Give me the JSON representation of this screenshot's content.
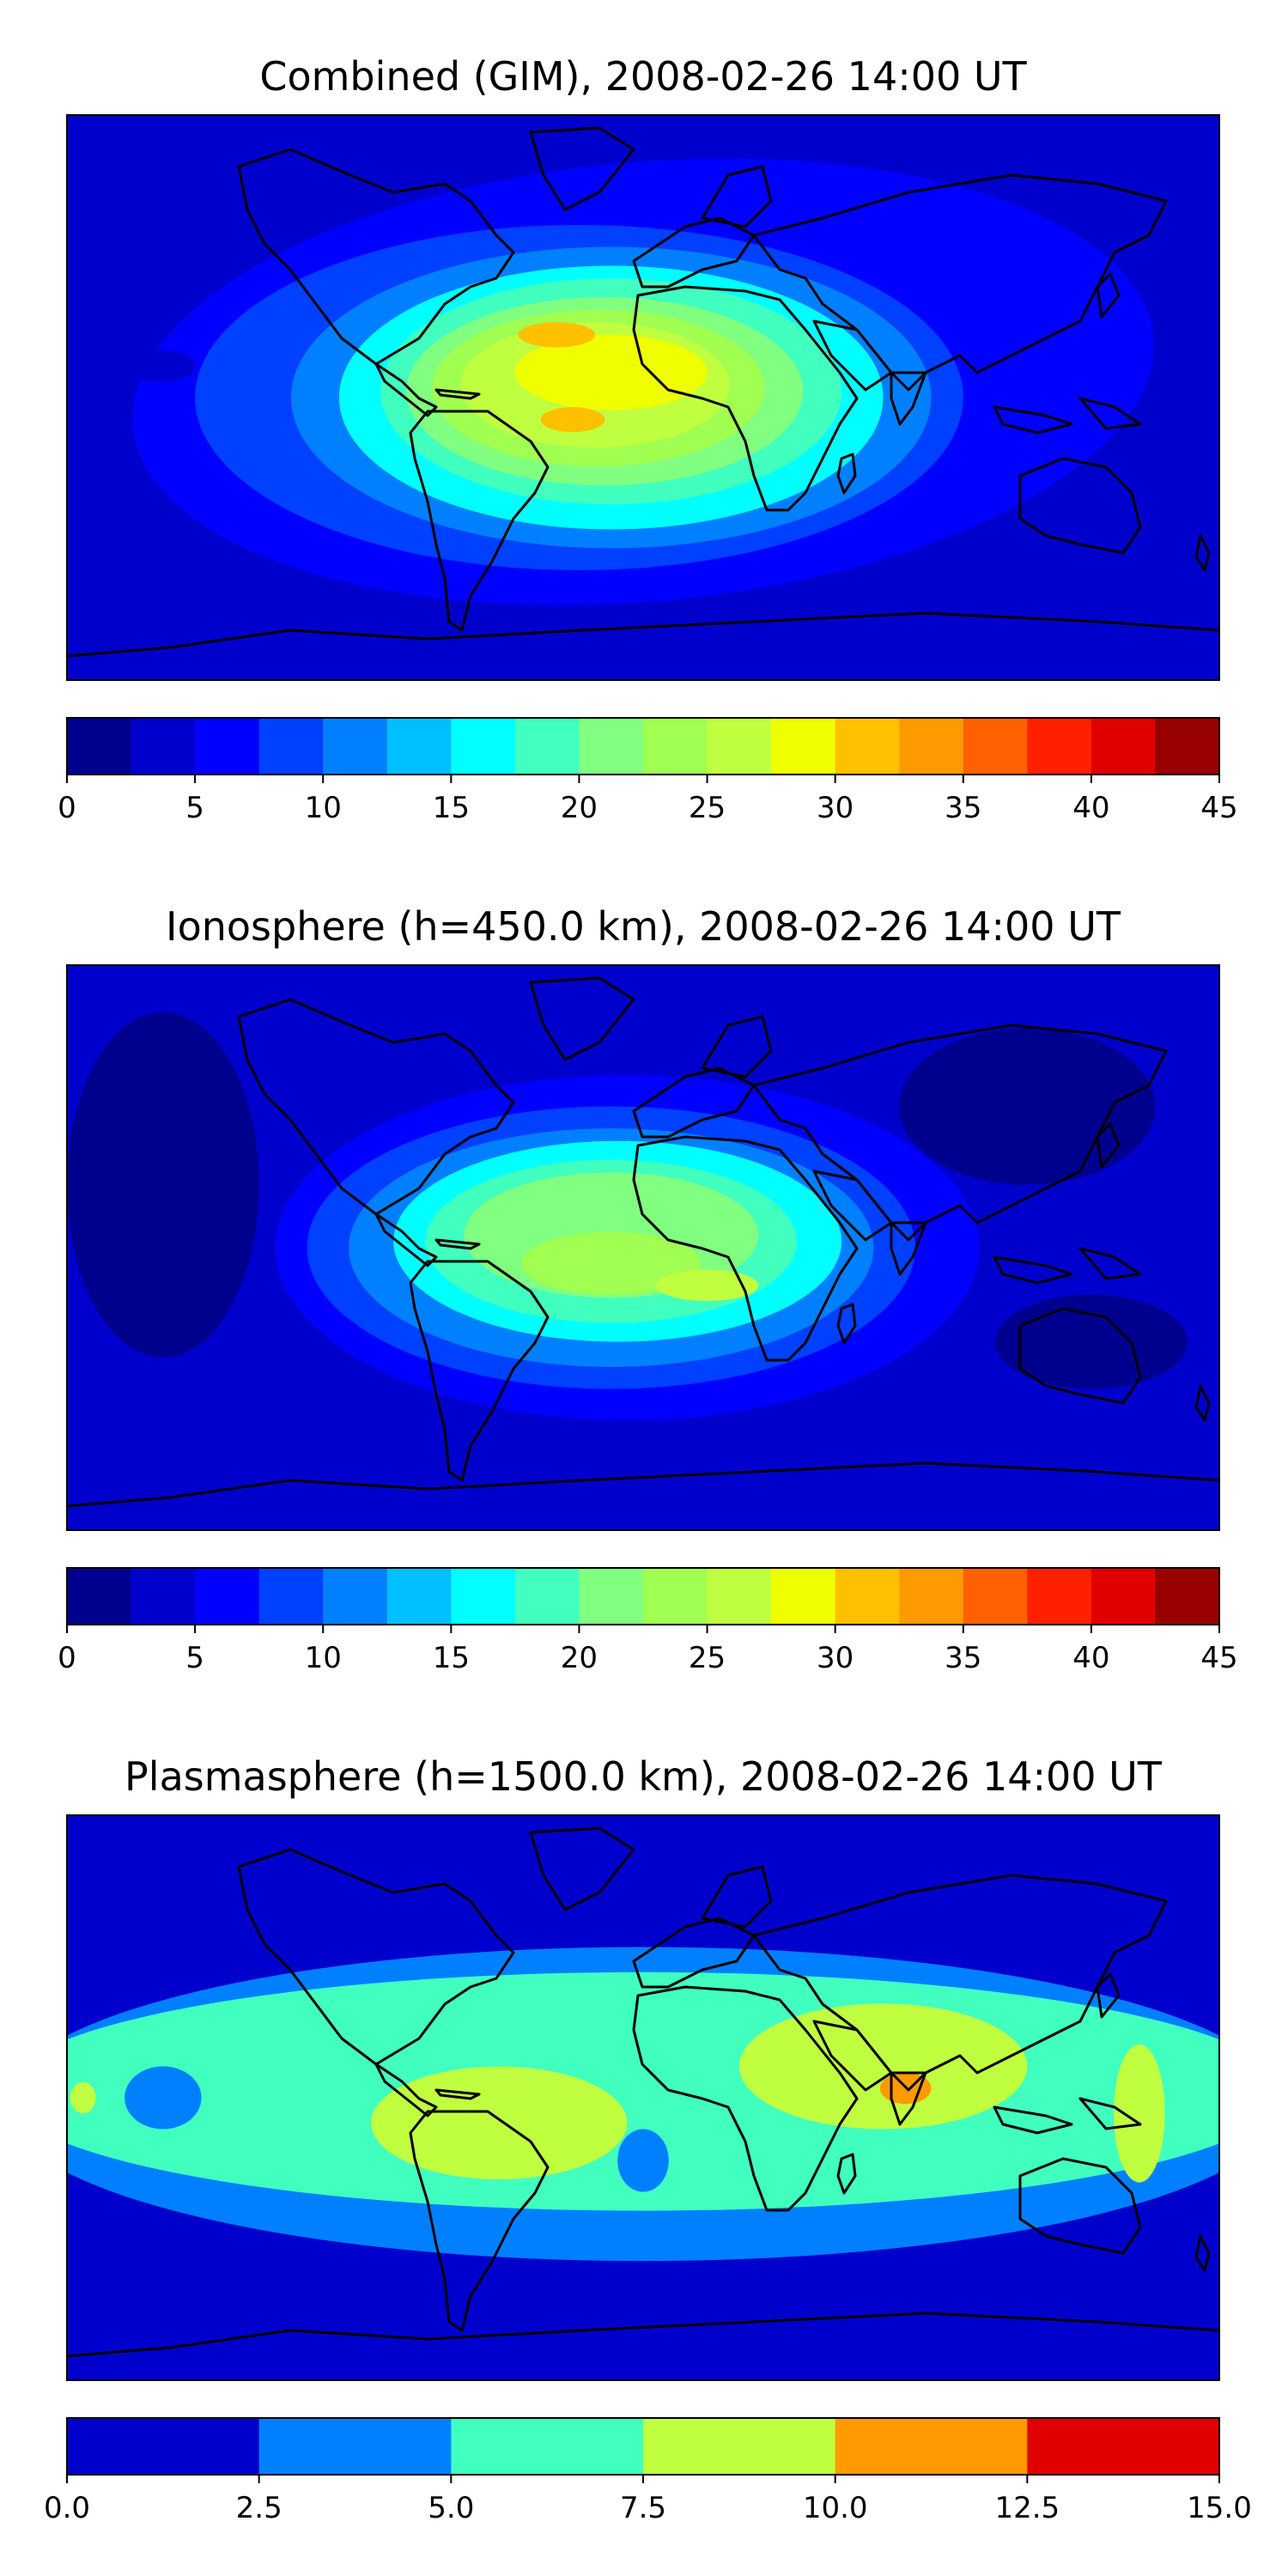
{
  "panels": [
    {
      "id": "combined",
      "title": "Combined (GIM), 2008-02-26 14:00 UT",
      "map": {
        "background": "#0000cd",
        "blobs": [
          {
            "lon": 0,
            "lat": 5,
            "rx": 160,
            "ry": 70,
            "value": 7,
            "rot": -5
          },
          {
            "lon": 40,
            "lat": 15,
            "rx": 100,
            "ry": 40,
            "value": 7
          },
          {
            "lon": -20,
            "lat": 0,
            "rx": 120,
            "ry": 55,
            "value": 9
          },
          {
            "lon": -10,
            "lat": 0,
            "rx": 100,
            "ry": 48,
            "value": 12
          },
          {
            "lon": -10,
            "lat": 0,
            "rx": 85,
            "ry": 42,
            "value": 15
          },
          {
            "lon": -10,
            "lat": 2,
            "rx": 72,
            "ry": 36,
            "value": 18
          },
          {
            "lon": -12,
            "lat": 2,
            "rx": 62,
            "ry": 30,
            "value": 21
          },
          {
            "lon": -14,
            "lat": 3,
            "rx": 52,
            "ry": 25,
            "value": 24
          },
          {
            "lon": -15,
            "lat": 4,
            "rx": 42,
            "ry": 20,
            "value": 27
          },
          {
            "lon": -10,
            "lat": 8,
            "rx": 30,
            "ry": 12,
            "value": 29
          },
          {
            "lon": -27,
            "lat": 20,
            "rx": 12,
            "ry": 4,
            "value": 31
          },
          {
            "lon": -22,
            "lat": -7,
            "rx": 10,
            "ry": 4,
            "value": 32
          },
          {
            "lon": 130,
            "lat": 15,
            "rx": 25,
            "ry": 18,
            "value": 6
          },
          {
            "lon": -150,
            "lat": 10,
            "rx": 10,
            "ry": 5,
            "value": 4
          }
        ]
      },
      "colorbar": {
        "levels": [
          0,
          2.5,
          5,
          7.5,
          10,
          12.5,
          15,
          17.5,
          20,
          22.5,
          25,
          27.5,
          30,
          32.5,
          35,
          37.5,
          40,
          42.5,
          45
        ],
        "colors": [
          "#00008f",
          "#0000cd",
          "#0000ff",
          "#0040ff",
          "#0080ff",
          "#00bfff",
          "#00ffff",
          "#40ffbf",
          "#80ff80",
          "#a0ff50",
          "#c0ff40",
          "#f0ff00",
          "#ffc000",
          "#ff9a00",
          "#ff6000",
          "#ff2000",
          "#e00000",
          "#990000"
        ],
        "tick_values": [
          0,
          5,
          10,
          15,
          20,
          25,
          30,
          35,
          40,
          45
        ],
        "tick_labels": [
          "0",
          "5",
          "10",
          "15",
          "20",
          "25",
          "30",
          "35",
          "40",
          "45"
        ]
      }
    },
    {
      "id": "ionosphere",
      "title": "Ionosphere  (h=450.0 km), 2008-02-26 14:00 UT",
      "map": {
        "background": "#0000cd",
        "blobs": [
          {
            "lon": -150,
            "lat": 20,
            "rx": 30,
            "ry": 55,
            "value": 2
          },
          {
            "lon": 120,
            "lat": 45,
            "rx": 40,
            "ry": 25,
            "value": 2
          },
          {
            "lon": 140,
            "lat": -30,
            "rx": 30,
            "ry": 15,
            "value": 2
          },
          {
            "lon": -5,
            "lat": 0,
            "rx": 110,
            "ry": 55,
            "value": 7
          },
          {
            "lon": -10,
            "lat": 0,
            "rx": 95,
            "ry": 45,
            "value": 9
          },
          {
            "lon": -10,
            "lat": 0,
            "rx": 82,
            "ry": 38,
            "value": 12
          },
          {
            "lon": -8,
            "lat": 2,
            "rx": 70,
            "ry": 32,
            "value": 15
          },
          {
            "lon": -10,
            "lat": 2,
            "rx": 58,
            "ry": 26,
            "value": 18
          },
          {
            "lon": -10,
            "lat": 4,
            "rx": 46,
            "ry": 20,
            "value": 21
          },
          {
            "lon": -10,
            "lat": -5,
            "rx": 28,
            "ry": 10,
            "value": 23
          },
          {
            "lon": 20,
            "lat": -12,
            "rx": 16,
            "ry": 5,
            "value": 26
          }
        ]
      },
      "colorbar": {
        "levels": [
          0,
          2.5,
          5,
          7.5,
          10,
          12.5,
          15,
          17.5,
          20,
          22.5,
          25,
          27.5,
          30,
          32.5,
          35,
          37.5,
          40,
          42.5,
          45
        ],
        "colors": [
          "#00008f",
          "#0000cd",
          "#0000ff",
          "#0040ff",
          "#0080ff",
          "#00bfff",
          "#00ffff",
          "#40ffbf",
          "#80ff80",
          "#a0ff50",
          "#c0ff40",
          "#f0ff00",
          "#ffc000",
          "#ff9a00",
          "#ff6000",
          "#ff2000",
          "#e00000",
          "#990000"
        ],
        "tick_values": [
          0,
          5,
          10,
          15,
          20,
          25,
          30,
          35,
          40,
          45
        ],
        "tick_labels": [
          "0",
          "5",
          "10",
          "15",
          "20",
          "25",
          "30",
          "35",
          "40",
          "45"
        ]
      }
    },
    {
      "id": "plasmasphere",
      "title": "Plasmasphere (h=1500.0 km), 2008-02-26 14:00 UT",
      "map": {
        "background": "#0000cd",
        "blobs": [
          {
            "lon": 0,
            "lat": -2,
            "rx": 200,
            "ry": 50,
            "value": 4
          },
          {
            "lon": 0,
            "lat": 2,
            "rx": 200,
            "ry": 38,
            "value": 6
          },
          {
            "lon": -45,
            "lat": -8,
            "rx": 40,
            "ry": 18,
            "value": 9
          },
          {
            "lon": 75,
            "lat": 10,
            "rx": 45,
            "ry": 20,
            "value": 9
          },
          {
            "lon": 155,
            "lat": -5,
            "rx": 8,
            "ry": 22,
            "value": 9
          },
          {
            "lon": -175,
            "lat": 0,
            "rx": 4,
            "ry": 5,
            "value": 9
          },
          {
            "lon": -150,
            "lat": 0,
            "rx": 12,
            "ry": 10,
            "value": 4
          },
          {
            "lon": 0,
            "lat": -20,
            "rx": 8,
            "ry": 10,
            "value": 4
          },
          {
            "lon": 82,
            "lat": 3,
            "rx": 8,
            "ry": 5,
            "value": 11
          }
        ]
      },
      "colorbar": {
        "levels": [
          0,
          2.5,
          5,
          7.5,
          10,
          12.5,
          15
        ],
        "colors": [
          "#0000cd",
          "#0080ff",
          "#40ffbf",
          "#c0ff40",
          "#ff9a00",
          "#e00000"
        ],
        "tick_values": [
          0,
          2.5,
          5,
          7.5,
          10,
          12.5,
          15
        ],
        "tick_labels": [
          "0.0",
          "2.5",
          "5.0",
          "7.5",
          "10.0",
          "12.5",
          "15.0"
        ]
      }
    }
  ],
  "chart_data": [
    {
      "type": "heatmap",
      "title": "Combined (GIM), 2008-02-26 14:00 UT",
      "x": {
        "range": [
          -180,
          180
        ]
      },
      "y": {
        "range": [
          -90,
          90
        ]
      },
      "colorbar_range": [
        0,
        45
      ],
      "colorbar_step": 2.5
    },
    {
      "type": "heatmap",
      "title": "Ionosphere  (h=450.0 km), 2008-02-26 14:00 UT",
      "x": {
        "range": [
          -180,
          180
        ]
      },
      "y": {
        "range": [
          -90,
          90
        ]
      },
      "colorbar_range": [
        0,
        45
      ],
      "colorbar_step": 2.5
    },
    {
      "type": "heatmap",
      "title": "Plasmasphere (h=1500.0 km), 2008-02-26 14:00 UT",
      "x": {
        "range": [
          -180,
          180
        ]
      },
      "y": {
        "range": [
          -90,
          90
        ]
      },
      "colorbar_range": [
        0,
        15
      ],
      "colorbar_step": 2.5
    }
  ]
}
